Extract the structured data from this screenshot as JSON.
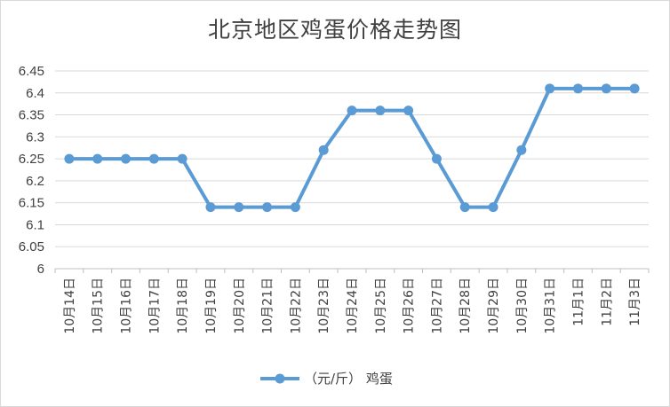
{
  "chart_data": {
    "type": "line",
    "title": "北京地区鸡蛋价格走势图",
    "xlabel": "",
    "ylabel": "",
    "categories": [
      "10月14日",
      "10月15日",
      "10月16日",
      "10月17日",
      "10月18日",
      "10月19日",
      "10月20日",
      "10月21日",
      "10月22日",
      "10月23日",
      "10月24日",
      "10月25日",
      "10月26日",
      "10月27日",
      "10月28日",
      "10月29日",
      "10月30日",
      "10月31日",
      "11月1日",
      "11月2日",
      "11月3日"
    ],
    "series": [
      {
        "name": "（元/斤） 鸡蛋",
        "values": [
          6.25,
          6.25,
          6.25,
          6.25,
          6.25,
          6.14,
          6.14,
          6.14,
          6.14,
          6.27,
          6.36,
          6.36,
          6.36,
          6.25,
          6.14,
          6.14,
          6.27,
          6.41,
          6.41,
          6.41,
          6.41
        ]
      }
    ],
    "ylim": [
      6,
      6.45
    ],
    "yticks": [
      "6",
      "6.05",
      "6.1",
      "6.15",
      "6.2",
      "6.25",
      "6.3",
      "6.35",
      "6.4",
      "6.45"
    ],
    "grid": true,
    "legend": "bottom",
    "colors": {
      "line": "#5b9bd5",
      "grid": "#d9d9d9",
      "axis": "#bfbfbf",
      "text": "#404040"
    }
  }
}
